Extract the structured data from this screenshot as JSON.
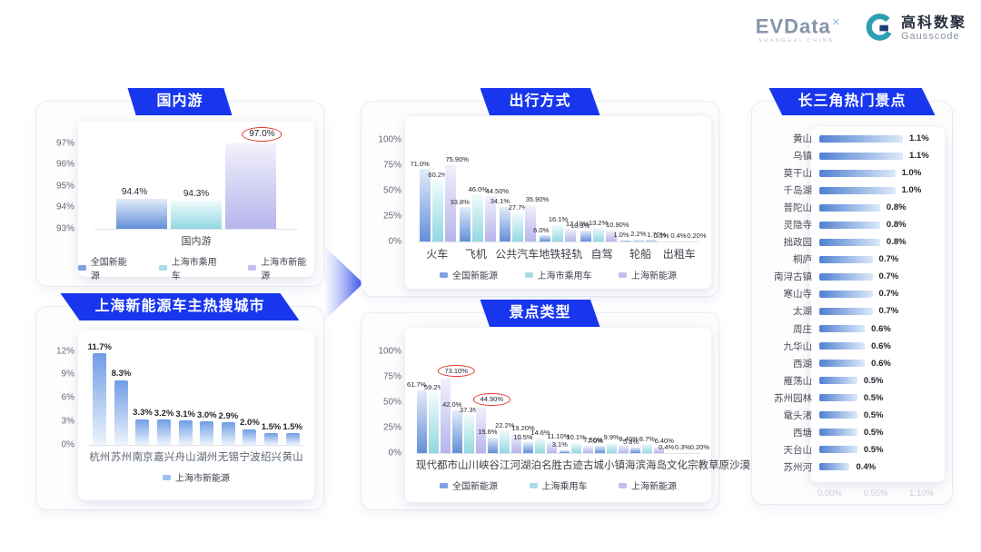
{
  "header": {
    "evdata": {
      "wordmark": "EVData",
      "sup": "✕",
      "subtitle": "SHANGHAI CHINA"
    },
    "gausscode": {
      "cn": "高科数聚",
      "en": "Gausscode"
    }
  },
  "colors": {
    "banner": "#1736ee",
    "annotation_red": "#e0352b",
    "gradients": {
      "s1": [
        "#e3ecf9",
        "#6390d8"
      ],
      "s2": [
        "#f0fbfc",
        "#92d8e1"
      ],
      "s3": [
        "#f2f1fc",
        "#b6b5ec"
      ],
      "city": [
        "#6f9de5",
        "#edf4fc"
      ],
      "hbar": [
        "#4f80d2",
        "#dce9f9"
      ]
    },
    "swatches": {
      "s1": "#7fa3e2",
      "s2": "#a9dee7",
      "s3": "#c1c0f0",
      "city": "#9dc0ee"
    }
  },
  "chart_data": [
    {
      "type": "bar",
      "title": "国内游",
      "categories": [
        "国内游"
      ],
      "ylim": [
        93,
        97.5
      ],
      "yticks": [
        {
          "value": 93,
          "label": "93%"
        },
        {
          "value": 94,
          "label": "94%"
        },
        {
          "value": 95,
          "label": "95%"
        },
        {
          "value": 96,
          "label": "96%"
        },
        {
          "value": 97,
          "label": "97%"
        }
      ],
      "legend_position": "bottom",
      "series": [
        {
          "name": "全国新能源",
          "values": [
            94.4
          ],
          "labels": [
            "94.4%"
          ]
        },
        {
          "name": "上海市乘用车",
          "values": [
            94.3
          ],
          "labels": [
            "94.3%"
          ]
        },
        {
          "name": "上海市新能源",
          "values": [
            97.0
          ],
          "labels": [
            "97.0%"
          ],
          "circled": [
            0
          ]
        }
      ]
    },
    {
      "type": "bar",
      "title": "上海新能源车主热搜城市",
      "categories": [
        "杭州",
        "苏州",
        "南京",
        "嘉兴",
        "舟山",
        "湖州",
        "无锡",
        "宁波",
        "绍兴",
        "黄山"
      ],
      "ylim": [
        0,
        13
      ],
      "yticks": [
        {
          "value": 0,
          "label": "0%"
        },
        {
          "value": 3,
          "label": "3%"
        },
        {
          "value": 6,
          "label": "6%"
        },
        {
          "value": 9,
          "label": "9%"
        },
        {
          "value": 12,
          "label": "12%"
        }
      ],
      "legend_position": "bottom",
      "series": [
        {
          "name": "上海市新能源",
          "values": [
            11.7,
            8.3,
            3.3,
            3.2,
            3.1,
            3.0,
            2.9,
            2.0,
            1.5,
            1.5
          ],
          "labels": [
            "11.7%",
            "8.3%",
            "3.3%",
            "3.2%",
            "3.1%",
            "3.0%",
            "2.9%",
            "2.0%",
            "1.5%",
            "1.5%"
          ]
        }
      ]
    },
    {
      "type": "bar",
      "title": "出行方式",
      "categories": [
        "火车",
        "飞机",
        "公共汽车",
        "地铁轻轨",
        "自驾",
        "轮船",
        "出租车"
      ],
      "ylim": [
        0,
        100
      ],
      "yticks": [
        {
          "value": 0,
          "label": "0%"
        },
        {
          "value": 25,
          "label": "25%"
        },
        {
          "value": 50,
          "label": "50%"
        },
        {
          "value": 75,
          "label": "75%"
        },
        {
          "value": 100,
          "label": "100%"
        }
      ],
      "legend_position": "bottom",
      "series": [
        {
          "name": "全国新能源",
          "values": [
            71.0,
            33.8,
            34.1,
            6.0,
            10.3,
            1.0,
            0.1
          ],
          "labels": [
            "71.0%",
            "33.8%",
            "34.1%",
            "6.0%",
            "10.3%",
            "1.0%",
            "0.1%"
          ]
        },
        {
          "name": "上海市乘用车",
          "values": [
            60.2,
            46.0,
            27.7,
            16.1,
            13.2,
            2.2,
            0.4
          ],
          "labels": [
            "60.2%",
            "46.0%",
            "27.7%",
            "16.1%",
            "13.2%",
            "2.2%",
            "0.4%"
          ]
        },
        {
          "name": "上海新能源",
          "values": [
            75.9,
            44.5,
            35.9,
            12.1,
            10.9,
            1.7,
            0.2
          ],
          "labels": [
            "75.90%",
            "44.50%",
            "35.90%",
            "12.10%",
            "10.90%",
            "1.70%",
            "0.20%"
          ]
        }
      ]
    },
    {
      "type": "bar",
      "title": "景点类型",
      "categories": [
        "现代都市",
        "山川峡谷",
        "江河湖泊",
        "名胜古迹",
        "古城小镇",
        "海滨海岛",
        "文化宗教",
        "草原沙漠"
      ],
      "ylim": [
        0,
        100
      ],
      "yticks": [
        {
          "value": 0,
          "label": "0%"
        },
        {
          "value": 25,
          "label": "25%"
        },
        {
          "value": 50,
          "label": "50%"
        },
        {
          "value": 75,
          "label": "75%"
        },
        {
          "value": 100,
          "label": "100%"
        }
      ],
      "legend_position": "bottom",
      "series": [
        {
          "name": "全国新能源",
          "values": [
            61.7,
            42.0,
            15.6,
            10.5,
            3.1,
            7.0,
            5.8,
            0.4
          ],
          "labels": [
            "61.7%",
            "42.0%",
            "15.6%",
            "10.5%",
            "3.1%",
            "7.0%",
            "5.8%",
            "0.4%"
          ]
        },
        {
          "name": "上海乘用车",
          "values": [
            59.2,
            37.3,
            22.2,
            14.6,
            10.1,
            9.9,
            8.7,
            0.3
          ],
          "labels": [
            "59.2%",
            "37.3%",
            "22.2%",
            "14.6%",
            "10.1%",
            "9.9%",
            "8.7%",
            "0.3%"
          ]
        },
        {
          "name": "上海新能源",
          "values": [
            73.1,
            44.9,
            19.2,
            11.1,
            7.5,
            8.4,
            6.4,
            0.2
          ],
          "labels": [
            "73.10%",
            "44.90%",
            "19.20%",
            "11.10%",
            "7.50%",
            "8.40%",
            "6.40%",
            "0.20%"
          ],
          "circled": [
            0,
            1
          ]
        }
      ]
    },
    {
      "type": "bar",
      "orientation": "horizontal",
      "title": "长三角热门景点",
      "categories": [
        "黄山",
        "乌镇",
        "莫干山",
        "千岛湖",
        "普陀山",
        "灵隐寺",
        "拙政园",
        "桐庐",
        "南浔古镇",
        "寒山寺",
        "太湖",
        "周庄",
        "九华山",
        "西湖",
        "雁荡山",
        "苏州园林",
        "鼋头渚",
        "西塘",
        "天台山",
        "苏州河"
      ],
      "values": [
        1.1,
        1.1,
        1.0,
        1.0,
        0.8,
        0.8,
        0.8,
        0.7,
        0.7,
        0.7,
        0.7,
        0.6,
        0.6,
        0.6,
        0.5,
        0.5,
        0.5,
        0.5,
        0.5,
        0.4
      ],
      "labels": [
        "1.1%",
        "1.1%",
        "1.0%",
        "1.0%",
        "0.8%",
        "0.8%",
        "0.8%",
        "0.7%",
        "0.7%",
        "0.7%",
        "0.7%",
        "0.6%",
        "0.6%",
        "0.6%",
        "0.5%",
        "0.5%",
        "0.5%",
        "0.5%",
        "0.5%",
        "0.4%"
      ],
      "xlim": [
        0,
        1.1
      ],
      "xticks": [
        "0.00%",
        "0.55%",
        "1.10%"
      ]
    }
  ]
}
